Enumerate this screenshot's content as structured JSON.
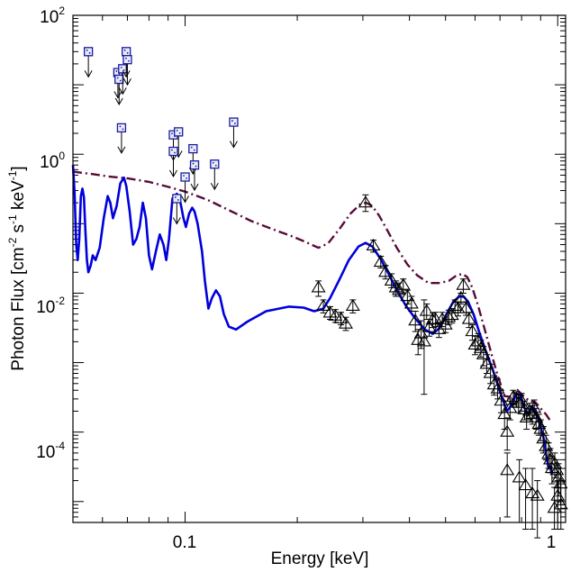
{
  "chart_data": {
    "type": "scatter",
    "xlabel": "Energy [keV]",
    "ylabel_parts": {
      "main": "Photon  Flux  [cm",
      "exp1": "-2",
      "mid1": " s",
      "exp2": "-1",
      "mid2": " keV",
      "exp3": "-1",
      "end": "]"
    },
    "x_scale": "log",
    "y_scale": "log",
    "xlim": [
      0.05,
      1.05
    ],
    "ylim": [
      5e-06,
      100
    ],
    "x_tick_labels": [
      {
        "value": 0.1,
        "label": "0.1"
      },
      {
        "value": 1,
        "label": "1"
      }
    ],
    "y_tick_labels": [
      {
        "value": 100,
        "base": "10",
        "exp": "2"
      },
      {
        "value": 1,
        "base": "10",
        "exp": "0"
      },
      {
        "value": 0.01,
        "base": "10",
        "exp": "-2"
      },
      {
        "value": 0.0001,
        "base": "10",
        "exp": "-4"
      }
    ],
    "series": [
      {
        "name": "model-solid",
        "kind": "line",
        "color": "#0000dd",
        "points": [
          [
            0.05,
            0.7
          ],
          [
            0.0505,
            0.28
          ],
          [
            0.051,
            0.05
          ],
          [
            0.0515,
            0.03
          ],
          [
            0.052,
            0.06
          ],
          [
            0.0525,
            0.25
          ],
          [
            0.053,
            0.32
          ],
          [
            0.0535,
            0.24
          ],
          [
            0.054,
            0.08
          ],
          [
            0.0545,
            0.03
          ],
          [
            0.055,
            0.02
          ],
          [
            0.0558,
            0.025
          ],
          [
            0.0565,
            0.035
          ],
          [
            0.0575,
            0.03
          ],
          [
            0.059,
            0.045
          ],
          [
            0.0605,
            0.12
          ],
          [
            0.062,
            0.25
          ],
          [
            0.063,
            0.2
          ],
          [
            0.064,
            0.12
          ],
          [
            0.0655,
            0.18
          ],
          [
            0.067,
            0.38
          ],
          [
            0.0685,
            0.46
          ],
          [
            0.0695,
            0.35
          ],
          [
            0.071,
            0.15
          ],
          [
            0.0725,
            0.05
          ],
          [
            0.074,
            0.06
          ],
          [
            0.0755,
            0.09
          ],
          [
            0.077,
            0.2
          ],
          [
            0.0785,
            0.12
          ],
          [
            0.08,
            0.035
          ],
          [
            0.0815,
            0.022
          ],
          [
            0.0835,
            0.04
          ],
          [
            0.0855,
            0.07
          ],
          [
            0.0875,
            0.05
          ],
          [
            0.089,
            0.03
          ],
          [
            0.0905,
            0.06
          ],
          [
            0.0925,
            0.23
          ],
          [
            0.095,
            0.27
          ],
          [
            0.097,
            0.21
          ],
          [
            0.099,
            0.12
          ],
          [
            0.1005,
            0.09
          ],
          [
            0.1025,
            0.14
          ],
          [
            0.1045,
            0.17
          ],
          [
            0.106,
            0.15
          ],
          [
            0.108,
            0.1
          ],
          [
            0.111,
            0.04
          ],
          [
            0.113,
            0.015
          ],
          [
            0.1155,
            0.006
          ],
          [
            0.118,
            0.0085
          ],
          [
            0.121,
            0.011
          ],
          [
            0.124,
            0.009
          ],
          [
            0.127,
            0.005
          ],
          [
            0.131,
            0.0033
          ],
          [
            0.137,
            0.003
          ],
          [
            0.147,
            0.0039
          ],
          [
            0.165,
            0.0055
          ],
          [
            0.19,
            0.0064
          ],
          [
            0.208,
            0.0062
          ],
          [
            0.222,
            0.0055
          ],
          [
            0.235,
            0.006
          ],
          [
            0.245,
            0.0085
          ],
          [
            0.26,
            0.016
          ],
          [
            0.275,
            0.03
          ],
          [
            0.292,
            0.047
          ],
          [
            0.305,
            0.053
          ],
          [
            0.318,
            0.047
          ],
          [
            0.335,
            0.031
          ],
          [
            0.35,
            0.02
          ],
          [
            0.37,
            0.011
          ],
          [
            0.392,
            0.0065
          ],
          [
            0.415,
            0.0043
          ],
          [
            0.44,
            0.003
          ],
          [
            0.462,
            0.0026
          ],
          [
            0.48,
            0.0031
          ],
          [
            0.505,
            0.0052
          ],
          [
            0.525,
            0.0076
          ],
          [
            0.545,
            0.009
          ],
          [
            0.56,
            0.0089
          ],
          [
            0.575,
            0.0075
          ],
          [
            0.595,
            0.0049
          ],
          [
            0.615,
            0.0028
          ],
          [
            0.64,
            0.0015
          ],
          [
            0.67,
            0.00078
          ],
          [
            0.7,
            0.00038
          ],
          [
            0.73,
            0.0002
          ],
          [
            0.755,
            0.00025
          ],
          [
            0.775,
            0.00036
          ],
          [
            0.795,
            0.00034
          ],
          [
            0.815,
            0.00022
          ],
          [
            0.835,
            0.00018
          ],
          [
            0.855,
            0.00023
          ],
          [
            0.875,
            0.0002
          ],
          [
            0.895,
            0.00013
          ],
          [
            0.915,
            8.5e-05
          ],
          [
            0.93,
            5e-05
          ],
          [
            0.945,
            3e-05
          ],
          [
            0.958,
            3.2e-05
          ],
          [
            0.968,
            2.5e-05
          ]
        ]
      },
      {
        "name": "model-dashdot",
        "kind": "line",
        "color": "#5a0a3a",
        "points": [
          [
            0.05,
            0.56
          ],
          [
            0.056,
            0.52
          ],
          [
            0.062,
            0.48
          ],
          [
            0.07,
            0.45
          ],
          [
            0.08,
            0.4
          ],
          [
            0.09,
            0.34
          ],
          [
            0.1,
            0.29
          ],
          [
            0.115,
            0.22
          ],
          [
            0.13,
            0.16
          ],
          [
            0.15,
            0.11
          ],
          [
            0.17,
            0.085
          ],
          [
            0.195,
            0.065
          ],
          [
            0.21,
            0.055
          ],
          [
            0.228,
            0.045
          ],
          [
            0.242,
            0.052
          ],
          [
            0.26,
            0.085
          ],
          [
            0.278,
            0.14
          ],
          [
            0.295,
            0.19
          ],
          [
            0.306,
            0.2
          ],
          [
            0.318,
            0.18
          ],
          [
            0.332,
            0.13
          ],
          [
            0.35,
            0.078
          ],
          [
            0.37,
            0.045
          ],
          [
            0.395,
            0.026
          ],
          [
            0.42,
            0.018
          ],
          [
            0.45,
            0.014
          ],
          [
            0.48,
            0.014
          ],
          [
            0.51,
            0.015
          ],
          [
            0.535,
            0.018
          ],
          [
            0.555,
            0.019
          ],
          [
            0.572,
            0.017
          ],
          [
            0.59,
            0.012
          ],
          [
            0.612,
            0.0065
          ],
          [
            0.635,
            0.0032
          ],
          [
            0.66,
            0.0015
          ],
          [
            0.69,
            0.00065
          ],
          [
            0.72,
            0.00033
          ],
          [
            0.75,
            0.00032
          ],
          [
            0.78,
            0.0004
          ],
          [
            0.81,
            0.00033
          ],
          [
            0.84,
            0.00028
          ],
          [
            0.87,
            0.00027
          ],
          [
            0.9,
            0.00022
          ],
          [
            0.93,
            0.00018
          ],
          [
            0.96,
            0.00014
          ]
        ]
      },
      {
        "name": "upper-limits",
        "kind": "square-arrow",
        "color": "#1a1aa0",
        "points": [
          [
            0.055,
            30
          ],
          [
            0.066,
            15
          ],
          [
            0.0665,
            12
          ],
          [
            0.068,
            17
          ],
          [
            0.0695,
            30
          ],
          [
            0.07,
            23
          ],
          [
            0.0675,
            2.4
          ],
          [
            0.093,
            1.9
          ],
          [
            0.096,
            2.1
          ],
          [
            0.093,
            1.1
          ],
          [
            0.105,
            1.2
          ],
          [
            0.106,
            0.7
          ],
          [
            0.1,
            0.47
          ],
          [
            0.095,
            0.23
          ],
          [
            0.12,
            0.72
          ],
          [
            0.135,
            2.9
          ]
        ]
      },
      {
        "name": "data-triangles",
        "kind": "triangle-errorbar",
        "color": "#000000",
        "points": [
          [
            0.228,
            0.012,
            0.015,
            0.009
          ],
          [
            0.235,
            0.0065,
            0.008,
            0.0052
          ],
          [
            0.245,
            0.0052,
            0.0064,
            0.0042
          ],
          [
            0.253,
            0.0047,
            0.0058,
            0.0038
          ],
          [
            0.262,
            0.0043,
            0.0053,
            0.0035
          ],
          [
            0.27,
            0.0036,
            0.0045,
            0.0029
          ],
          [
            0.282,
            0.0065,
            0.008,
            0.0052
          ],
          [
            0.305,
            0.2,
            0.26,
            0.15
          ],
          [
            0.32,
            0.048,
            0.058,
            0.039
          ],
          [
            0.335,
            0.028,
            0.034,
            0.023
          ],
          [
            0.345,
            0.02,
            0.025,
            0.016
          ],
          [
            0.358,
            0.015,
            0.019,
            0.012
          ],
          [
            0.368,
            0.012,
            0.015,
            0.009
          ],
          [
            0.375,
            0.011,
            0.014,
            0.009
          ],
          [
            0.385,
            0.013,
            0.016,
            0.01
          ],
          [
            0.395,
            0.009,
            0.011,
            0.007
          ],
          [
            0.405,
            0.007,
            0.009,
            0.0055
          ],
          [
            0.415,
            0.004,
            0.0055,
            0.0028
          ],
          [
            0.422,
            0.0021,
            0.003,
            0.0013
          ],
          [
            0.43,
            0.0026,
            0.004,
            0.0016
          ],
          [
            0.438,
            0.002,
            0.008,
            0.00035
          ],
          [
            0.445,
            0.0055,
            0.007,
            0.0042
          ],
          [
            0.452,
            0.0032,
            0.0042,
            0.0024
          ],
          [
            0.462,
            0.0041,
            0.0052,
            0.0032
          ],
          [
            0.47,
            0.0042,
            0.0053,
            0.0033
          ],
          [
            0.48,
            0.003,
            0.0038,
            0.0023
          ],
          [
            0.49,
            0.0042,
            0.0053,
            0.0033
          ],
          [
            0.5,
            0.0035,
            0.0044,
            0.0027
          ],
          [
            0.51,
            0.0045,
            0.0057,
            0.0035
          ],
          [
            0.52,
            0.0048,
            0.006,
            0.0037
          ],
          [
            0.53,
            0.0065,
            0.008,
            0.0052
          ],
          [
            0.54,
            0.006,
            0.0075,
            0.0047
          ],
          [
            0.55,
            0.0085,
            0.01,
            0.007
          ],
          [
            0.558,
            0.013,
            0.016,
            0.01
          ],
          [
            0.568,
            0.006,
            0.0075,
            0.0048
          ],
          [
            0.578,
            0.0042,
            0.0053,
            0.0032
          ],
          [
            0.59,
            0.0028,
            0.0035,
            0.0021
          ],
          [
            0.6,
            0.0018,
            0.0024,
            0.0013
          ],
          [
            0.612,
            0.002,
            0.0026,
            0.0015
          ],
          [
            0.622,
            0.0016,
            0.0021,
            0.0012
          ],
          [
            0.632,
            0.0013,
            0.0017,
            0.0009
          ],
          [
            0.645,
            0.00095,
            0.0013,
            0.0007
          ],
          [
            0.66,
            0.0007,
            0.00095,
            0.0005
          ],
          [
            0.675,
            0.00048,
            0.00065,
            0.00034
          ],
          [
            0.69,
            0.00042,
            0.00058,
            0.0003
          ],
          [
            0.705,
            0.00028,
            0.0004,
            0.00019
          ],
          [
            0.72,
            0.00018,
            0.00028,
            0.00011
          ],
          [
            0.732,
            0.0001,
            0.00016,
            5.5e-05
          ],
          [
            0.745,
            0.00022,
            0.0003,
            0.00015
          ],
          [
            0.76,
            0.00032,
            0.0004,
            0.00025
          ],
          [
            0.775,
            0.0003,
            0.00038,
            0.00023
          ],
          [
            0.785,
            0.00026,
            0.00034,
            0.00019
          ],
          [
            0.8,
            0.00028,
            0.00036,
            0.0002
          ],
          [
            0.815,
            0.00021,
            0.00028,
            0.00015
          ],
          [
            0.825,
            0.00016,
            0.00022,
            0.00011
          ],
          [
            0.84,
            0.0002,
            0.00026,
            0.00015
          ],
          [
            0.855,
            0.00018,
            0.00024,
            0.00013
          ],
          [
            0.865,
            0.00022,
            0.00029,
            0.00016
          ],
          [
            0.875,
            0.00016,
            0.00022,
            0.00011
          ],
          [
            0.89,
            0.00013,
            0.00018,
            9e-05
          ],
          [
            0.9,
            0.00011,
            0.00015,
            7.5e-05
          ],
          [
            0.915,
            8e-05,
            0.00012,
            5e-05
          ],
          [
            0.93,
            6.2e-05,
            9e-05,
            4e-05
          ],
          [
            0.945,
            4.8e-05,
            7e-05,
            3e-05
          ],
          [
            0.955,
            4e-05,
            5.8e-05,
            2.6e-05
          ],
          [
            0.965,
            3e-05,
            4.5e-05,
            1.8e-05
          ],
          [
            0.982,
            3.5e-05,
            5e-05,
            2.2e-05
          ],
          [
            0.995,
            2.8e-05,
            4e-05,
            1.6e-05
          ],
          [
            1.005,
            2.2e-05,
            3.5e-05,
            1.2e-05
          ],
          [
            1.018,
            1.8e-05,
            3e-05,
            9e-06
          ],
          [
            0.732,
            2.8e-05,
            5e-05,
            6e-06
          ],
          [
            0.789,
            2.2e-05,
            4e-05,
            5e-06
          ],
          [
            0.82,
            1.7e-05,
            3e-05,
            4e-06
          ],
          [
            0.855,
            1.3e-05,
            3e-05,
            4e-06
          ],
          [
            0.882,
            1.2e-05,
            2e-05,
            3e-06
          ],
          [
            1.0,
            1.2e-05,
            2e-05,
            4e-06
          ],
          [
            1.02,
            9e-06,
            1.8e-05,
            4e-06
          ],
          [
            0.98,
            8e-06,
            1.6e-05,
            4e-06
          ]
        ]
      }
    ]
  }
}
